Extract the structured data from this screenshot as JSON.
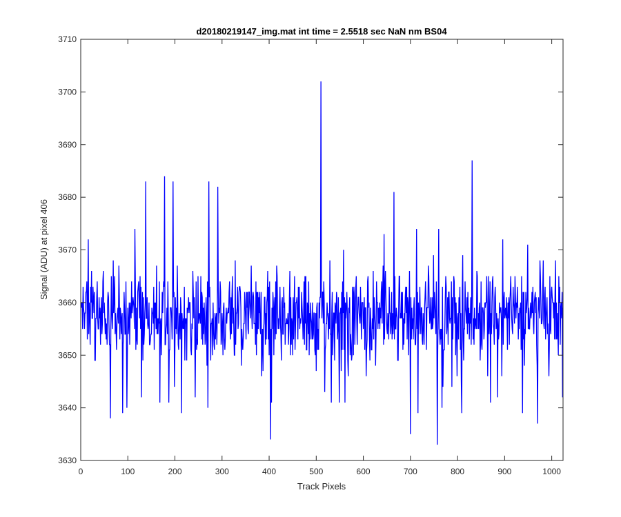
{
  "chart_data": {
    "type": "line",
    "title": "d20180219147_img.mat int time = 2.5518 sec  NaN nm BS04",
    "xlabel": "Track Pixels",
    "ylabel": "Signal (ADU) at pixel 406",
    "xlim": [
      0,
      1024
    ],
    "ylim": [
      3630,
      3710
    ],
    "x_ticks": [
      0,
      100,
      200,
      300,
      400,
      500,
      600,
      700,
      800,
      900,
      1000
    ],
    "y_ticks": [
      3630,
      3640,
      3650,
      3660,
      3670,
      3680,
      3690,
      3700,
      3710
    ],
    "grid": false,
    "legend": "none",
    "series": [
      {
        "color": "#0000ff",
        "n_points": 1024,
        "x_start": 1,
        "y_typical_range": [
          3645,
          3670
        ],
        "y_mean": 3657,
        "notable_points": [
          {
            "x": 63,
            "y": 3638
          },
          {
            "x": 138,
            "y": 3683
          },
          {
            "x": 178,
            "y": 3684
          },
          {
            "x": 196,
            "y": 3683
          },
          {
            "x": 272,
            "y": 3683
          },
          {
            "x": 291,
            "y": 3682
          },
          {
            "x": 403,
            "y": 3634
          },
          {
            "x": 510,
            "y": 3702
          },
          {
            "x": 665,
            "y": 3681
          },
          {
            "x": 700,
            "y": 3635
          },
          {
            "x": 757,
            "y": 3633
          },
          {
            "x": 831,
            "y": 3687
          },
          {
            "x": 970,
            "y": 3637
          }
        ]
      }
    ]
  }
}
